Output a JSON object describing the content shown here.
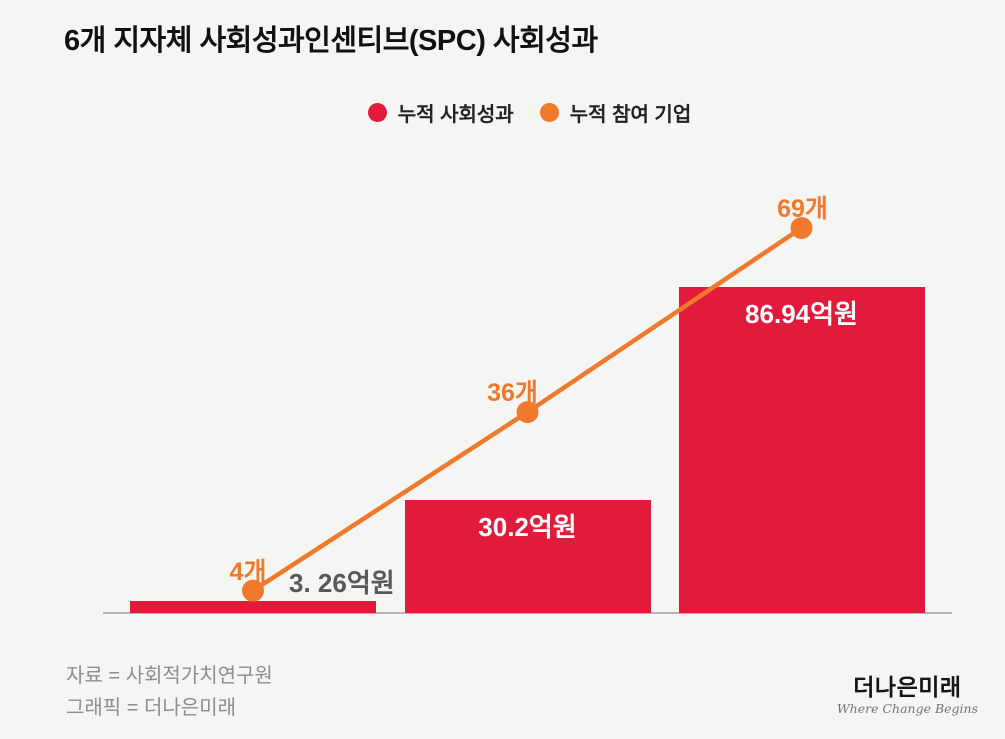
{
  "page": {
    "title": "6개 지자체 사회성과인센티브(SPC) 사회성과",
    "background_color": "#f5f5f4"
  },
  "legend": {
    "items": [
      {
        "label": "누적 사회성과",
        "color": "#e21a3c"
      },
      {
        "label": "누적 참여 기업",
        "color": "#f0792b"
      }
    ]
  },
  "chart_data": {
    "type": "bar",
    "title": "6개 지자체 사회성과인센티브(SPC) 사회성과",
    "categories": [
      "",
      "",
      ""
    ],
    "series": [
      {
        "name": "누적 사회성과",
        "chart_type": "bar",
        "color": "#e21a3c",
        "unit": "억원",
        "values": [
          3.26,
          30.2,
          86.94
        ],
        "labels": [
          "3. 26억원",
          "30.2억원",
          "86.94억원"
        ]
      },
      {
        "name": "누적 참여 기업",
        "chart_type": "line",
        "color": "#f0792b",
        "unit": "개",
        "values": [
          4,
          36,
          69
        ],
        "labels": [
          "4개",
          "36개",
          "69개"
        ]
      }
    ],
    "xlabel": "",
    "ylabel": "",
    "grid": false,
    "axis_baseline_only": true,
    "legend_position": "top-center"
  },
  "colors": {
    "bar_red": "#e21a3c",
    "line_orange": "#f0792b",
    "inside_bar_label": "#ffffff",
    "outside_bar_label": "#58585a",
    "axis_line": "#b5b5b5",
    "footer_text": "#8d8d8d",
    "background": "#f5f5f4"
  },
  "footer": {
    "source": "자료 = 사회적가치연구원",
    "credit": "그래픽 = 더나은미래",
    "logo": {
      "name": "더나은미래",
      "tagline": "Where Change Begins"
    }
  }
}
